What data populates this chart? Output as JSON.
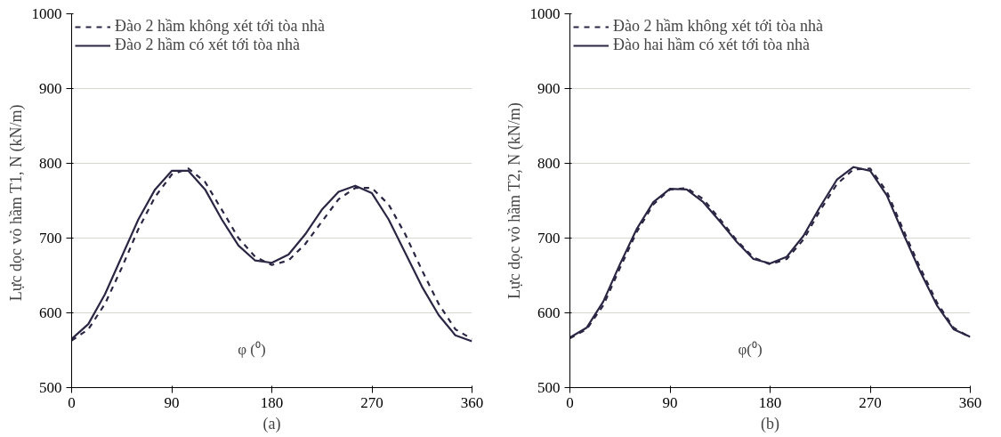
{
  "chart_data": [
    {
      "type": "line",
      "xlabel": "(a)",
      "ylabel": "Lực dọc  vỏ hầm T1, N (kN/m)",
      "annotations": [
        "φ (⁰)"
      ],
      "x": [
        0,
        15,
        30,
        45,
        60,
        75,
        90,
        105,
        120,
        135,
        150,
        165,
        180,
        195,
        210,
        225,
        240,
        255,
        270,
        285,
        300,
        315,
        330,
        345,
        360
      ],
      "series": [
        {
          "name": "Đào 2 hầm không xét tới tòa nhà",
          "color": "#2b2644",
          "line_style": "dashed",
          "values": [
            563,
            578,
            612,
            660,
            712,
            755,
            785,
            793,
            775,
            738,
            700,
            675,
            664,
            670,
            692,
            722,
            752,
            767,
            767,
            745,
            705,
            657,
            612,
            578,
            565
          ]
        },
        {
          "name": "Đào 2 hầm có xét tới tòa nhà",
          "color": "#2b2644",
          "line_style": "solid",
          "values": [
            565,
            585,
            625,
            675,
            725,
            765,
            790,
            790,
            765,
            725,
            690,
            670,
            667,
            678,
            705,
            738,
            762,
            770,
            760,
            725,
            680,
            635,
            597,
            570,
            562
          ]
        }
      ],
      "xlim": [
        0,
        360
      ],
      "xticks": [
        0,
        90,
        180,
        270,
        360
      ],
      "ylim": [
        500,
        1000
      ],
      "yticks": [
        500,
        600,
        700,
        800,
        900,
        1000
      ],
      "grid": "y",
      "legend": "top left"
    },
    {
      "type": "line",
      "xlabel": "(b)",
      "ylabel": "Lực dọc vỏ hầm T2, N (kN/m)",
      "annotations": [
        "φ(⁰)"
      ],
      "x": [
        0,
        15,
        30,
        45,
        60,
        75,
        90,
        105,
        120,
        135,
        150,
        165,
        180,
        195,
        210,
        225,
        240,
        255,
        270,
        285,
        300,
        315,
        330,
        345,
        360
      ],
      "series": [
        {
          "name": "Đào 2 hầm không xét tới tòa nhà",
          "color": "#2b2644",
          "line_style": "dashed",
          "values": [
            566,
            578,
            610,
            660,
            708,
            745,
            765,
            767,
            752,
            725,
            697,
            674,
            665,
            672,
            698,
            737,
            772,
            792,
            793,
            762,
            710,
            660,
            614,
            580,
            567
          ]
        },
        {
          "name": "Đào hai hầm có xét tới tòa nhà",
          "color": "#2b2644",
          "line_style": "solid",
          "values": [
            567,
            580,
            615,
            665,
            712,
            748,
            766,
            765,
            748,
            722,
            695,
            672,
            666,
            675,
            703,
            742,
            778,
            795,
            790,
            757,
            705,
            655,
            610,
            578,
            568
          ]
        }
      ],
      "xlim": [
        0,
        360
      ],
      "xticks": [
        0,
        90,
        180,
        270,
        360
      ],
      "ylim": [
        500,
        1000
      ],
      "yticks": [
        500,
        600,
        700,
        800,
        900,
        1000
      ],
      "grid": "y",
      "legend": "top left"
    }
  ]
}
